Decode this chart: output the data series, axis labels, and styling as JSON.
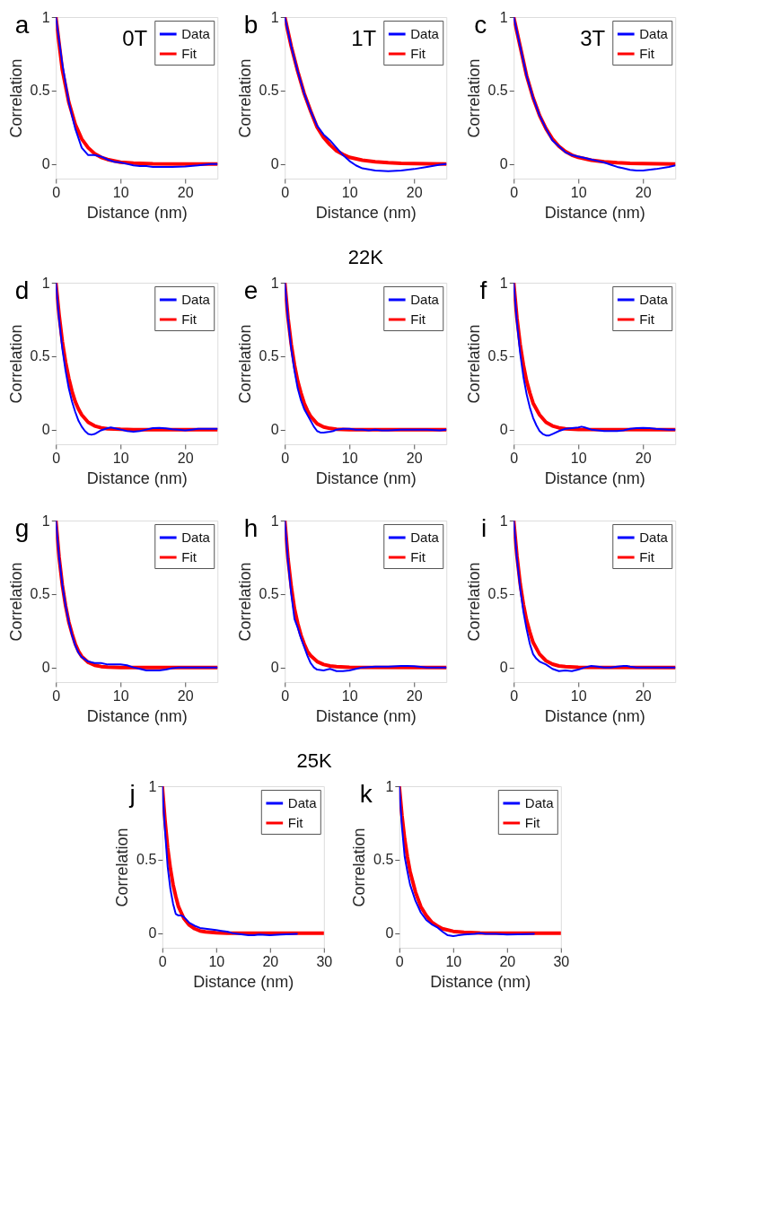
{
  "chart_data": [
    {
      "type": "line",
      "annotations": [
        "a",
        "0T"
      ],
      "xlabel": "Distance (nm)",
      "ylabel": "Correlation",
      "xlim": [
        0,
        25
      ],
      "ylim": [
        -0.1,
        1
      ],
      "xticks": [
        0,
        10,
        20
      ],
      "yticks": [
        0,
        0.5,
        1
      ],
      "legend": "top right",
      "series": [
        {
          "name": "Data",
          "color": "#0000ff",
          "x": [
            0,
            1,
            2,
            3,
            4,
            5,
            6,
            7,
            8,
            9,
            10,
            11,
            12,
            13,
            14,
            15,
            16,
            18,
            20,
            22,
            24,
            25
          ],
          "values": [
            1,
            0.68,
            0.42,
            0.24,
            0.11,
            0.06,
            0.06,
            0.05,
            0.03,
            0.015,
            0.01,
            0,
            -0.01,
            -0.015,
            -0.015,
            -0.02,
            -0.02,
            -0.02,
            -0.018,
            -0.01,
            0,
            0
          ]
        },
        {
          "name": "Fit",
          "color": "#ff0000",
          "x": [
            0,
            1,
            2,
            3,
            4,
            5,
            6,
            7,
            8,
            10,
            12,
            15,
            20,
            25
          ],
          "values": [
            1,
            0.64,
            0.42,
            0.27,
            0.17,
            0.11,
            0.07,
            0.045,
            0.03,
            0.012,
            0.005,
            0.001,
            0,
            0
          ]
        }
      ]
    },
    {
      "type": "line",
      "annotations": [
        "b",
        "1T"
      ],
      "xlabel": "Distance (nm)",
      "ylabel": "Correlation",
      "xlim": [
        0,
        25
      ],
      "ylim": [
        -0.1,
        1
      ],
      "xticks": [
        0,
        10,
        20
      ],
      "yticks": [
        0,
        0.5,
        1
      ],
      "legend": "top right",
      "series": [
        {
          "name": "Data",
          "color": "#0000ff",
          "x": [
            0,
            1,
            2,
            3,
            4,
            5,
            6,
            7,
            8,
            9,
            10,
            11,
            12,
            14,
            16,
            18,
            20,
            22,
            24,
            25
          ],
          "values": [
            1,
            0.8,
            0.63,
            0.48,
            0.36,
            0.26,
            0.2,
            0.16,
            0.11,
            0.06,
            0.02,
            -0.01,
            -0.03,
            -0.045,
            -0.05,
            -0.045,
            -0.035,
            -0.02,
            -0.005,
            0
          ]
        },
        {
          "name": "Fit",
          "color": "#ff0000",
          "x": [
            0,
            1,
            2,
            3,
            4,
            5,
            6,
            7,
            8,
            9,
            10,
            12,
            14,
            16,
            18,
            20,
            25
          ],
          "values": [
            1,
            0.8,
            0.63,
            0.48,
            0.36,
            0.25,
            0.18,
            0.13,
            0.09,
            0.065,
            0.045,
            0.025,
            0.015,
            0.008,
            0.004,
            0.002,
            0
          ]
        }
      ]
    },
    {
      "type": "line",
      "annotations": [
        "c",
        "3T"
      ],
      "xlabel": "Distance (nm)",
      "ylabel": "Correlation",
      "xlim": [
        0,
        25
      ],
      "ylim": [
        -0.1,
        1
      ],
      "xticks": [
        0,
        10,
        20
      ],
      "yticks": [
        0,
        0.5,
        1
      ],
      "legend": "top right",
      "series": [
        {
          "name": "Data",
          "color": "#0000ff",
          "x": [
            0,
            1,
            2,
            3,
            4,
            5,
            6,
            7,
            8,
            9,
            10,
            11,
            12,
            13,
            14,
            15,
            16,
            17,
            18,
            19,
            20,
            22,
            24,
            25
          ],
          "values": [
            1,
            0.8,
            0.6,
            0.45,
            0.33,
            0.24,
            0.16,
            0.12,
            0.08,
            0.06,
            0.05,
            0.04,
            0.03,
            0.02,
            0.01,
            -0.005,
            -0.02,
            -0.03,
            -0.04,
            -0.045,
            -0.045,
            -0.035,
            -0.02,
            -0.01
          ]
        },
        {
          "name": "Fit",
          "color": "#ff0000",
          "x": [
            0,
            1,
            2,
            3,
            4,
            5,
            6,
            7,
            8,
            9,
            10,
            12,
            14,
            16,
            18,
            20,
            25
          ],
          "values": [
            1,
            0.8,
            0.6,
            0.45,
            0.33,
            0.24,
            0.17,
            0.12,
            0.085,
            0.06,
            0.045,
            0.025,
            0.015,
            0.008,
            0.004,
            0.002,
            0
          ]
        }
      ]
    },
    {
      "type": "line",
      "annotations": [
        "d"
      ],
      "xlabel": "Distance (nm)",
      "ylabel": "Correlation",
      "xlim": [
        0,
        25
      ],
      "ylim": [
        -0.1,
        1
      ],
      "xticks": [
        0,
        10,
        20
      ],
      "yticks": [
        0,
        0.5,
        1
      ],
      "legend": "top right",
      "series": [
        {
          "name": "Data",
          "color": "#0000ff",
          "x": [
            0,
            0.5,
            1,
            1.5,
            2,
            2.5,
            3,
            3.5,
            4,
            4.5,
            5,
            5.5,
            6,
            7,
            8,
            8.5,
            9,
            10,
            11,
            12,
            13,
            14,
            15,
            16,
            17,
            18,
            19,
            20,
            21,
            22,
            24,
            25
          ],
          "values": [
            1,
            0.75,
            0.55,
            0.4,
            0.28,
            0.19,
            0.12,
            0.06,
            0.02,
            -0.01,
            -0.03,
            -0.035,
            -0.03,
            -0.005,
            0.01,
            0.015,
            0.01,
            0,
            -0.01,
            -0.015,
            -0.01,
            0,
            0.01,
            0.012,
            0.008,
            0.002,
            0,
            -0.005,
            0,
            0.005,
            0.005,
            0.005
          ]
        },
        {
          "name": "Fit",
          "color": "#ff0000",
          "x": [
            0,
            0.5,
            1,
            1.5,
            2,
            2.5,
            3,
            3.5,
            4,
            5,
            6,
            7,
            8,
            10,
            12,
            25
          ],
          "values": [
            1,
            0.78,
            0.6,
            0.46,
            0.35,
            0.26,
            0.19,
            0.14,
            0.1,
            0.05,
            0.025,
            0.012,
            0.006,
            0.002,
            0,
            0
          ]
        }
      ]
    },
    {
      "type": "line",
      "title": "22K",
      "annotations": [
        "e"
      ],
      "xlabel": "Distance (nm)",
      "ylabel": "Correlation",
      "xlim": [
        0,
        25
      ],
      "ylim": [
        -0.1,
        1
      ],
      "xticks": [
        0,
        10,
        20
      ],
      "yticks": [
        0,
        0.5,
        1
      ],
      "legend": "top right",
      "series": [
        {
          "name": "Data",
          "color": "#0000ff",
          "x": [
            0,
            0.5,
            1,
            1.5,
            2,
            2.5,
            3,
            3.5,
            4,
            4.5,
            5,
            5.5,
            6,
            7,
            7.5,
            8,
            9,
            10,
            11,
            12,
            13,
            14,
            15,
            16,
            18,
            20,
            22,
            24,
            25
          ],
          "values": [
            1,
            0.75,
            0.55,
            0.4,
            0.28,
            0.2,
            0.14,
            0.1,
            0.06,
            0.02,
            -0.01,
            -0.02,
            -0.02,
            -0.015,
            -0.01,
            0,
            0.005,
            0.005,
            0,
            0,
            -0.005,
            0,
            -0.005,
            -0.005,
            0,
            0,
            0,
            -0.005,
            0
          ]
        },
        {
          "name": "Fit",
          "color": "#ff0000",
          "x": [
            0,
            0.5,
            1,
            1.5,
            2,
            2.5,
            3,
            3.5,
            4,
            5,
            6,
            7,
            8,
            10,
            25
          ],
          "values": [
            1,
            0.76,
            0.58,
            0.44,
            0.33,
            0.25,
            0.18,
            0.13,
            0.09,
            0.04,
            0.018,
            0.008,
            0.003,
            0,
            0
          ]
        }
      ]
    },
    {
      "type": "line",
      "annotations": [
        "f"
      ],
      "xlabel": "Distance (nm)",
      "ylabel": "Correlation",
      "xlim": [
        0,
        25
      ],
      "ylim": [
        -0.1,
        1
      ],
      "xticks": [
        0,
        10,
        20
      ],
      "yticks": [
        0,
        0.5,
        1
      ],
      "legend": "top right",
      "series": [
        {
          "name": "Data",
          "color": "#0000ff",
          "x": [
            0,
            0.5,
            1,
            1.5,
            2,
            2.5,
            3,
            3.5,
            4,
            4.5,
            5,
            5.5,
            6,
            7,
            8,
            9,
            10,
            10.5,
            11,
            12,
            13,
            14,
            15,
            16,
            17,
            18,
            19,
            20,
            21,
            22,
            24,
            25
          ],
          "values": [
            1,
            0.73,
            0.52,
            0.36,
            0.24,
            0.15,
            0.08,
            0.03,
            -0.01,
            -0.03,
            -0.04,
            -0.04,
            -0.03,
            -0.01,
            0.005,
            0.01,
            0.015,
            0.02,
            0.015,
            0,
            -0.005,
            -0.01,
            -0.01,
            -0.01,
            -0.005,
            0.005,
            0.01,
            0.012,
            0.01,
            0.005,
            0,
            0
          ]
        },
        {
          "name": "Fit",
          "color": "#ff0000",
          "x": [
            0,
            0.5,
            1,
            1.5,
            2,
            2.5,
            3,
            4,
            5,
            6,
            7,
            8,
            10,
            25
          ],
          "values": [
            1,
            0.76,
            0.58,
            0.44,
            0.33,
            0.25,
            0.18,
            0.1,
            0.05,
            0.025,
            0.012,
            0.006,
            0.001,
            0
          ]
        }
      ]
    },
    {
      "type": "line",
      "annotations": [
        "g"
      ],
      "xlabel": "Distance (nm)",
      "ylabel": "Correlation",
      "xlim": [
        0,
        25
      ],
      "ylim": [
        -0.1,
        1
      ],
      "xticks": [
        0,
        10,
        20
      ],
      "yticks": [
        0,
        0.5,
        1
      ],
      "legend": "top right",
      "series": [
        {
          "name": "Data",
          "color": "#0000ff",
          "x": [
            0,
            0.5,
            1,
            1.5,
            2,
            2.5,
            3,
            3.5,
            4,
            5,
            6,
            7,
            8,
            9,
            10,
            11,
            12,
            13,
            14,
            15,
            16,
            17,
            18,
            19,
            20,
            22,
            25
          ],
          "values": [
            1,
            0.75,
            0.56,
            0.42,
            0.31,
            0.22,
            0.15,
            0.1,
            0.07,
            0.04,
            0.03,
            0.03,
            0.02,
            0.02,
            0.02,
            0.015,
            0,
            -0.01,
            -0.02,
            -0.02,
            -0.02,
            -0.015,
            -0.005,
            0,
            0,
            0,
            0
          ]
        },
        {
          "name": "Fit",
          "color": "#ff0000",
          "x": [
            0,
            0.5,
            1,
            1.5,
            2,
            2.5,
            3,
            3.5,
            4,
            5,
            6,
            7,
            8,
            10,
            25
          ],
          "values": [
            1,
            0.75,
            0.56,
            0.42,
            0.31,
            0.23,
            0.16,
            0.11,
            0.075,
            0.035,
            0.015,
            0.006,
            0.002,
            0,
            0
          ]
        }
      ]
    },
    {
      "type": "line",
      "annotations": [
        "h"
      ],
      "xlabel": "Distance (nm)",
      "ylabel": "Correlation",
      "xlim": [
        0,
        25
      ],
      "ylim": [
        -0.1,
        1
      ],
      "xticks": [
        0,
        10,
        20
      ],
      "yticks": [
        0,
        0.5,
        1
      ],
      "legend": "top right",
      "series": [
        {
          "name": "Data",
          "color": "#0000ff",
          "x": [
            0,
            0.5,
            1,
            1.5,
            2,
            2.5,
            3,
            3.5,
            4,
            4.5,
            5,
            6,
            7,
            8,
            9,
            10,
            11,
            12,
            14,
            16,
            18,
            19,
            20,
            22,
            24,
            25
          ],
          "values": [
            1,
            0.72,
            0.5,
            0.33,
            0.27,
            0.2,
            0.14,
            0.08,
            0.03,
            0,
            -0.015,
            -0.02,
            -0.01,
            -0.025,
            -0.025,
            -0.02,
            -0.01,
            0,
            0.005,
            0.005,
            0.01,
            0.01,
            0.008,
            0,
            0,
            0
          ]
        },
        {
          "name": "Fit",
          "color": "#ff0000",
          "x": [
            0,
            0.5,
            1,
            1.5,
            2,
            2.5,
            3,
            3.5,
            4,
            5,
            6,
            7,
            8,
            10,
            25
          ],
          "values": [
            1,
            0.74,
            0.55,
            0.4,
            0.3,
            0.22,
            0.16,
            0.11,
            0.08,
            0.04,
            0.02,
            0.01,
            0.005,
            0.001,
            0
          ]
        }
      ]
    },
    {
      "type": "line",
      "annotations": [
        "i"
      ],
      "xlabel": "Distance (nm)",
      "ylabel": "Correlation",
      "xlim": [
        0,
        25
      ],
      "ylim": [
        -0.1,
        1
      ],
      "xticks": [
        0,
        10,
        20
      ],
      "yticks": [
        0,
        0.5,
        1
      ],
      "legend": "top right",
      "series": [
        {
          "name": "Data",
          "color": "#0000ff",
          "x": [
            0,
            0.5,
            1,
            1.5,
            2,
            2.5,
            3,
            3.5,
            4,
            5,
            6,
            7,
            8,
            9,
            10,
            11,
            12,
            13,
            14,
            15,
            16,
            17,
            17.5,
            18,
            19,
            20,
            22,
            25
          ],
          "values": [
            1,
            0.74,
            0.54,
            0.38,
            0.26,
            0.16,
            0.09,
            0.06,
            0.04,
            0.02,
            -0.01,
            -0.025,
            -0.02,
            -0.025,
            -0.015,
            0,
            0.01,
            0.005,
            0,
            0,
            0.005,
            0.01,
            0.01,
            0.005,
            0,
            0,
            0,
            0
          ]
        },
        {
          "name": "Fit",
          "color": "#ff0000",
          "x": [
            0,
            0.5,
            1,
            1.5,
            2,
            2.5,
            3,
            4,
            5,
            6,
            7,
            8,
            10,
            25
          ],
          "values": [
            1,
            0.76,
            0.57,
            0.43,
            0.32,
            0.24,
            0.17,
            0.09,
            0.045,
            0.022,
            0.01,
            0.005,
            0.001,
            0
          ]
        }
      ]
    },
    {
      "type": "line",
      "title": "25K",
      "annotations": [
        "j"
      ],
      "xlabel": "Distance (nm)",
      "ylabel": "Correlation",
      "xlim": [
        0,
        30
      ],
      "ylim": [
        -0.1,
        1
      ],
      "xticks": [
        0,
        10,
        20,
        30
      ],
      "yticks": [
        0,
        0.5,
        1
      ],
      "legend": "top right",
      "series": [
        {
          "name": "Data",
          "color": "#0000ff",
          "x": [
            0,
            0.5,
            1,
            1.5,
            2,
            2.5,
            3,
            3.5,
            4,
            5,
            6,
            7,
            8,
            9,
            10,
            11,
            12,
            13,
            14,
            15,
            16,
            17,
            18,
            20,
            22,
            25
          ],
          "values": [
            1,
            0.7,
            0.45,
            0.3,
            0.2,
            0.13,
            0.12,
            0.12,
            0.11,
            0.07,
            0.05,
            0.035,
            0.03,
            0.025,
            0.02,
            0.015,
            0.01,
            0,
            -0.005,
            -0.01,
            -0.015,
            -0.015,
            -0.01,
            -0.015,
            -0.01,
            -0.005
          ]
        },
        {
          "name": "Fit",
          "color": "#ff0000",
          "x": [
            0,
            0.5,
            1,
            1.5,
            2,
            2.5,
            3,
            4,
            5,
            6,
            7,
            8,
            10,
            12,
            30
          ],
          "values": [
            1,
            0.77,
            0.58,
            0.44,
            0.33,
            0.25,
            0.18,
            0.1,
            0.055,
            0.03,
            0.015,
            0.008,
            0.002,
            0,
            0
          ]
        }
      ]
    },
    {
      "type": "line",
      "annotations": [
        "k"
      ],
      "xlabel": "Distance (nm)",
      "ylabel": "Correlation",
      "xlim": [
        0,
        30
      ],
      "ylim": [
        -0.1,
        1
      ],
      "xticks": [
        0,
        10,
        20,
        30
      ],
      "yticks": [
        0,
        0.5,
        1
      ],
      "legend": "top right",
      "series": [
        {
          "name": "Data",
          "color": "#0000ff",
          "x": [
            0,
            0.5,
            1,
            1.5,
            2,
            3,
            4,
            5,
            6,
            7,
            8,
            9,
            10,
            11,
            12,
            14,
            15,
            16,
            18,
            20,
            22,
            25
          ],
          "values": [
            1,
            0.72,
            0.52,
            0.42,
            0.33,
            0.22,
            0.14,
            0.09,
            0.06,
            0.04,
            0.01,
            -0.015,
            -0.02,
            -0.015,
            -0.01,
            -0.005,
            0,
            -0.005,
            -0.005,
            -0.01,
            -0.008,
            -0.005
          ]
        },
        {
          "name": "Fit",
          "color": "#ff0000",
          "x": [
            0,
            0.5,
            1,
            1.5,
            2,
            3,
            4,
            5,
            6,
            7,
            8,
            10,
            12,
            15,
            20,
            30
          ],
          "values": [
            1,
            0.8,
            0.64,
            0.52,
            0.42,
            0.28,
            0.18,
            0.12,
            0.075,
            0.05,
            0.03,
            0.012,
            0.005,
            0.001,
            0,
            0
          ]
        }
      ]
    }
  ]
}
